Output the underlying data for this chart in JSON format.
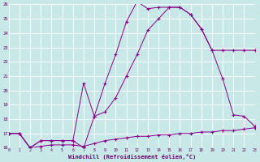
{
  "xlabel": "Windchill (Refroidissement éolien,°C)",
  "bg_color": "#c8e8e8",
  "grid_color": "#ffffff",
  "line_color": "#880088",
  "xlim": [
    0,
    23
  ],
  "ylim": [
    16,
    26
  ],
  "yticks": [
    16,
    17,
    18,
    19,
    20,
    21,
    22,
    23,
    24,
    25,
    26
  ],
  "xticks": [
    0,
    1,
    2,
    3,
    4,
    5,
    6,
    7,
    8,
    9,
    10,
    11,
    12,
    13,
    14,
    15,
    16,
    17,
    18,
    19,
    20,
    21,
    22,
    23
  ],
  "line1_x": [
    0,
    1,
    2,
    3,
    4,
    5,
    6,
    7,
    8,
    9,
    10,
    11,
    12,
    13,
    14,
    15,
    16,
    17,
    18,
    19,
    20,
    21,
    22,
    23
  ],
  "line1_y": [
    17.0,
    17.0,
    16.0,
    16.1,
    16.2,
    16.2,
    16.2,
    16.1,
    16.3,
    16.5,
    16.6,
    16.7,
    16.8,
    16.8,
    16.9,
    16.9,
    17.0,
    17.0,
    17.1,
    17.1,
    17.2,
    17.2,
    17.3,
    17.4
  ],
  "line2_x": [
    0,
    1,
    2,
    3,
    4,
    5,
    6,
    7,
    8,
    9,
    10,
    11,
    12,
    13,
    14,
    15,
    16,
    17,
    18,
    19,
    20,
    21,
    22,
    23
  ],
  "line2_y": [
    17.0,
    17.0,
    16.0,
    16.5,
    16.5,
    16.5,
    16.5,
    16.0,
    18.2,
    20.5,
    22.5,
    24.8,
    26.2,
    25.7,
    25.8,
    25.8,
    25.8,
    25.3,
    24.3,
    22.8,
    22.8,
    22.8,
    22.8,
    22.8
  ],
  "line3_x": [
    0,
    1,
    2,
    3,
    4,
    5,
    6,
    7,
    8,
    9,
    10,
    11,
    12,
    13,
    14,
    15,
    16,
    17,
    18,
    19,
    20,
    21,
    22,
    23
  ],
  "line3_y": [
    17.0,
    17.0,
    16.0,
    16.5,
    16.5,
    16.5,
    16.5,
    20.5,
    18.2,
    18.5,
    19.5,
    21.0,
    22.5,
    24.2,
    25.0,
    25.8,
    25.8,
    25.3,
    24.3,
    22.8,
    20.8,
    18.3,
    18.2,
    17.5
  ]
}
